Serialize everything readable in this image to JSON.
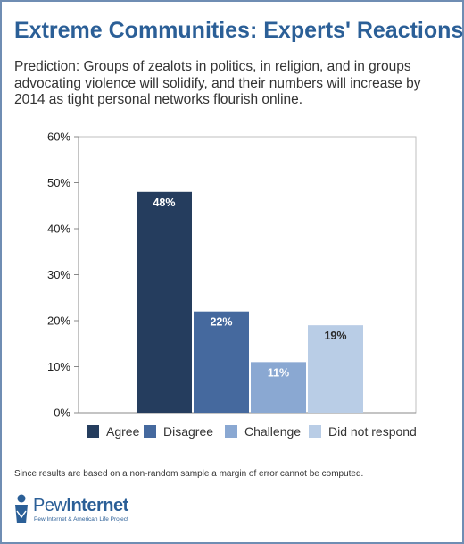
{
  "header": {
    "title": "Extreme Communities: Experts' Reactions",
    "subtitle": "Prediction: Groups of zealots in politics, in religion, and in groups advocating violence will solidify, and their numbers will increase by 2014 as tight personal networks flourish online."
  },
  "chart_data": {
    "type": "bar",
    "categories": [
      "Agree",
      "Disagree",
      "Challenge",
      "Did not respond"
    ],
    "values": [
      48,
      22,
      11,
      19
    ],
    "value_labels": [
      "48%",
      "22%",
      "11%",
      "19%"
    ],
    "colors": [
      "#253d5e",
      "#45699e",
      "#8aa8d2",
      "#b9cde6"
    ],
    "label_colors": [
      "#ffffff",
      "#ffffff",
      "#ffffff",
      "#2b2b2b"
    ],
    "ylim": [
      0,
      60
    ],
    "yticks": [
      0,
      10,
      20,
      30,
      40,
      50,
      60
    ],
    "ytick_labels": [
      "0%",
      "10%",
      "20%",
      "30%",
      "40%",
      "50%",
      "60%"
    ],
    "grid": false,
    "legend": {
      "placement": "bottom",
      "entries": [
        "Agree",
        "Disagree",
        "Challenge",
        "Did not respond"
      ]
    }
  },
  "footnote": "Since results are based on a non-random sample a margin of error cannot be computed.",
  "logo": {
    "word1": "Pew",
    "word2": "Internet",
    "tagline": "Pew Internet & American Life Project",
    "icon": "pew-person-icon"
  }
}
